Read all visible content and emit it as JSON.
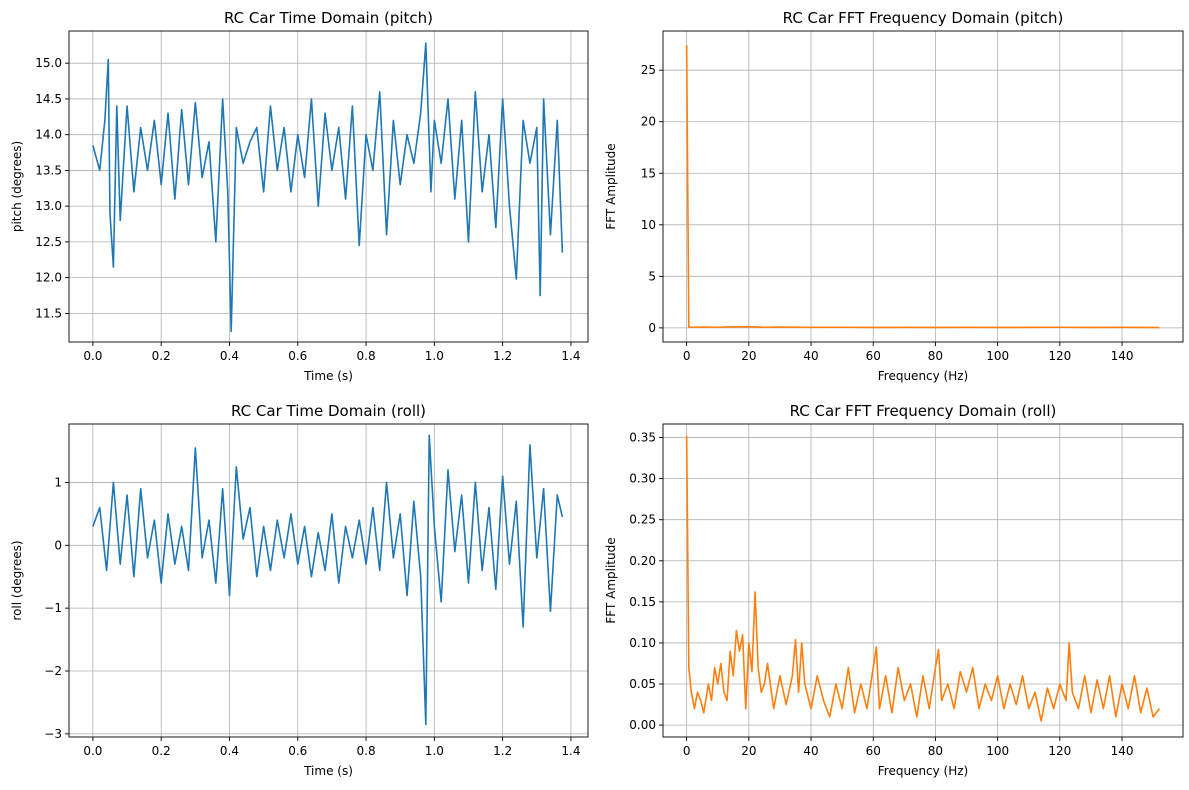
{
  "chart_data": [
    {
      "type": "line",
      "title": "RC Car Time Domain (pitch)",
      "xlabel": "Time (s)",
      "ylabel": "pitch (degrees)",
      "xlim": [
        -0.07,
        1.45
      ],
      "ylim": [
        11.1,
        15.45
      ],
      "xticks": [
        0.0,
        0.2,
        0.4,
        0.6,
        0.8,
        1.0,
        1.2,
        1.4
      ],
      "xtick_labels": [
        "0.0",
        "0.2",
        "0.4",
        "0.6",
        "0.8",
        "1.0",
        "1.2",
        "1.4"
      ],
      "yticks": [
        11.5,
        12.0,
        12.5,
        13.0,
        13.5,
        14.0,
        14.5,
        15.0
      ],
      "ytick_labels": [
        "11.5",
        "12.0",
        "12.5",
        "13.0",
        "13.5",
        "14.0",
        "14.5",
        "15.0"
      ],
      "grid": true,
      "color": "#1f77b4",
      "series": [
        {
          "name": "pitch",
          "x": [
            0.0,
            0.02,
            0.035,
            0.045,
            0.05,
            0.06,
            0.07,
            0.08,
            0.1,
            0.12,
            0.14,
            0.16,
            0.18,
            0.2,
            0.22,
            0.24,
            0.26,
            0.28,
            0.3,
            0.32,
            0.34,
            0.36,
            0.38,
            0.395,
            0.405,
            0.42,
            0.44,
            0.46,
            0.48,
            0.5,
            0.52,
            0.54,
            0.56,
            0.58,
            0.6,
            0.62,
            0.64,
            0.66,
            0.68,
            0.7,
            0.72,
            0.74,
            0.76,
            0.78,
            0.8,
            0.82,
            0.84,
            0.86,
            0.88,
            0.9,
            0.92,
            0.94,
            0.96,
            0.975,
            0.99,
            1.0,
            1.02,
            1.04,
            1.06,
            1.08,
            1.1,
            1.12,
            1.14,
            1.16,
            1.18,
            1.2,
            1.22,
            1.24,
            1.26,
            1.28,
            1.3,
            1.31,
            1.32,
            1.34,
            1.36,
            1.375
          ],
          "values": [
            13.85,
            13.5,
            14.2,
            15.05,
            12.9,
            12.15,
            14.4,
            12.8,
            14.4,
            13.2,
            14.1,
            13.5,
            14.2,
            13.3,
            14.3,
            13.1,
            14.35,
            13.3,
            14.45,
            13.4,
            13.9,
            12.5,
            14.5,
            13.2,
            11.25,
            14.1,
            13.6,
            13.9,
            14.1,
            13.2,
            14.4,
            13.5,
            14.1,
            13.2,
            14.0,
            13.4,
            14.5,
            13.0,
            14.3,
            13.5,
            14.1,
            13.1,
            14.4,
            12.45,
            14.0,
            13.5,
            14.6,
            12.6,
            14.2,
            13.3,
            14.0,
            13.6,
            14.3,
            15.28,
            13.2,
            14.2,
            13.6,
            14.5,
            13.1,
            14.2,
            12.5,
            14.6,
            13.2,
            14.0,
            12.7,
            14.5,
            13.0,
            11.98,
            14.2,
            13.6,
            14.1,
            11.75,
            14.5,
            12.6,
            14.2,
            12.35
          ]
        }
      ]
    },
    {
      "type": "line",
      "title": "RC Car FFT Frequency Domain (pitch)",
      "xlabel": "Frequency (Hz)",
      "ylabel": "FFT Amplitude",
      "xlim": [
        -7.6,
        159.6
      ],
      "ylim": [
        -1.37,
        28.8
      ],
      "xticks": [
        0,
        20,
        40,
        60,
        80,
        100,
        120,
        140
      ],
      "xtick_labels": [
        "0",
        "20",
        "40",
        "60",
        "80",
        "100",
        "120",
        "140"
      ],
      "yticks": [
        0,
        5,
        10,
        15,
        20,
        25
      ],
      "ytick_labels": [
        "0",
        "5",
        "10",
        "15",
        "20",
        "25"
      ],
      "grid": true,
      "color": "#ff7f0e",
      "series": [
        {
          "name": "FFT pitch",
          "x": [
            0,
            0.7,
            2,
            5,
            10,
            15,
            20,
            25,
            30,
            40,
            50,
            60,
            70,
            80,
            90,
            100,
            110,
            120,
            130,
            140,
            152
          ],
          "values": [
            27.4,
            0.1,
            0.05,
            0.08,
            0.05,
            0.1,
            0.12,
            0.06,
            0.08,
            0.05,
            0.06,
            0.04,
            0.05,
            0.04,
            0.05,
            0.04,
            0.05,
            0.06,
            0.04,
            0.05,
            0.03
          ]
        }
      ]
    },
    {
      "type": "line",
      "title": "RC Car Time Domain (roll)",
      "xlabel": "Time (s)",
      "ylabel": "roll (degrees)",
      "xlim": [
        -0.07,
        1.45
      ],
      "ylim": [
        -3.05,
        1.93
      ],
      "xticks": [
        0.0,
        0.2,
        0.4,
        0.6,
        0.8,
        1.0,
        1.2,
        1.4
      ],
      "xtick_labels": [
        "0.0",
        "0.2",
        "0.4",
        "0.6",
        "0.8",
        "1.0",
        "1.2",
        "1.4"
      ],
      "yticks": [
        -3,
        -2,
        -1,
        0,
        1
      ],
      "ytick_labels": [
        "−3",
        "−2",
        "−1",
        "0",
        "1"
      ],
      "grid": true,
      "color": "#1f77b4",
      "series": [
        {
          "name": "roll",
          "x": [
            0.0,
            0.02,
            0.04,
            0.06,
            0.08,
            0.1,
            0.12,
            0.14,
            0.16,
            0.18,
            0.2,
            0.22,
            0.24,
            0.26,
            0.28,
            0.3,
            0.32,
            0.34,
            0.36,
            0.38,
            0.4,
            0.42,
            0.44,
            0.46,
            0.48,
            0.5,
            0.52,
            0.54,
            0.56,
            0.58,
            0.6,
            0.62,
            0.64,
            0.66,
            0.68,
            0.7,
            0.72,
            0.74,
            0.76,
            0.78,
            0.8,
            0.82,
            0.84,
            0.86,
            0.88,
            0.9,
            0.92,
            0.94,
            0.96,
            0.975,
            0.985,
            1.0,
            1.02,
            1.04,
            1.06,
            1.08,
            1.1,
            1.12,
            1.14,
            1.16,
            1.18,
            1.2,
            1.22,
            1.24,
            1.26,
            1.28,
            1.3,
            1.32,
            1.34,
            1.36,
            1.375
          ],
          "values": [
            0.3,
            0.6,
            -0.4,
            1.0,
            -0.3,
            0.8,
            -0.5,
            0.9,
            -0.2,
            0.4,
            -0.6,
            0.5,
            -0.3,
            0.3,
            -0.4,
            1.55,
            -0.2,
            0.4,
            -0.6,
            0.9,
            -0.8,
            1.25,
            0.1,
            0.6,
            -0.5,
            0.3,
            -0.4,
            0.4,
            -0.2,
            0.5,
            -0.3,
            0.3,
            -0.5,
            0.2,
            -0.4,
            0.5,
            -0.6,
            0.3,
            -0.2,
            0.4,
            -0.3,
            0.6,
            -0.4,
            1.0,
            -0.2,
            0.5,
            -0.8,
            0.7,
            -0.5,
            -2.85,
            1.75,
            0.3,
            -0.9,
            1.2,
            -0.1,
            0.8,
            -0.6,
            1.0,
            -0.4,
            0.6,
            -0.7,
            1.1,
            -0.3,
            0.7,
            -1.3,
            1.6,
            -0.2,
            0.9,
            -1.05,
            0.8,
            0.45
          ]
        }
      ]
    },
    {
      "type": "line",
      "title": "RC Car FFT Frequency Domain (roll)",
      "xlabel": "Frequency (Hz)",
      "ylabel": "FFT Amplitude",
      "xlim": [
        -7.6,
        159.6
      ],
      "ylim": [
        -0.0145,
        0.3665
      ],
      "xticks": [
        0,
        20,
        40,
        60,
        80,
        100,
        120,
        140
      ],
      "xtick_labels": [
        "0",
        "20",
        "40",
        "60",
        "80",
        "100",
        "120",
        "140"
      ],
      "yticks": [
        0.0,
        0.05,
        0.1,
        0.15,
        0.2,
        0.25,
        0.3,
        0.35
      ],
      "ytick_labels": [
        "0.00",
        "0.05",
        "0.10",
        "0.15",
        "0.20",
        "0.25",
        "0.30",
        "0.35"
      ],
      "grid": true,
      "color": "#ff7f0e",
      "series": [
        {
          "name": "FFT roll",
          "x": [
            0,
            0.7,
            1.5,
            2.5,
            3.5,
            4.5,
            5.5,
            7,
            8,
            9,
            10,
            11,
            12,
            13,
            14,
            15,
            16,
            17,
            18,
            19,
            20,
            21,
            22,
            23,
            24,
            25,
            26,
            28,
            30,
            32,
            34,
            35,
            36,
            37,
            38,
            40,
            42,
            44,
            46,
            48,
            50,
            52,
            54,
            56,
            58,
            60,
            61,
            62,
            64,
            66,
            68,
            70,
            72,
            74,
            76,
            78,
            80,
            81,
            82,
            84,
            86,
            88,
            90,
            92,
            94,
            96,
            98,
            100,
            102,
            104,
            106,
            108,
            110,
            112,
            114,
            116,
            118,
            120,
            122,
            123,
            124,
            126,
            128,
            130,
            132,
            134,
            136,
            138,
            140,
            142,
            144,
            146,
            148,
            150,
            152
          ],
          "values": [
            0.352,
            0.07,
            0.04,
            0.02,
            0.04,
            0.03,
            0.015,
            0.05,
            0.03,
            0.07,
            0.05,
            0.075,
            0.04,
            0.03,
            0.09,
            0.06,
            0.115,
            0.09,
            0.11,
            0.02,
            0.1,
            0.065,
            0.162,
            0.07,
            0.04,
            0.05,
            0.075,
            0.02,
            0.06,
            0.025,
            0.06,
            0.104,
            0.04,
            0.1,
            0.05,
            0.02,
            0.06,
            0.03,
            0.01,
            0.05,
            0.02,
            0.07,
            0.015,
            0.05,
            0.02,
            0.07,
            0.095,
            0.02,
            0.06,
            0.015,
            0.07,
            0.03,
            0.05,
            0.01,
            0.06,
            0.02,
            0.07,
            0.092,
            0.03,
            0.05,
            0.02,
            0.065,
            0.04,
            0.07,
            0.02,
            0.05,
            0.03,
            0.06,
            0.02,
            0.05,
            0.025,
            0.06,
            0.02,
            0.04,
            0.005,
            0.045,
            0.02,
            0.05,
            0.03,
            0.1,
            0.04,
            0.02,
            0.06,
            0.015,
            0.055,
            0.02,
            0.06,
            0.01,
            0.05,
            0.02,
            0.06,
            0.015,
            0.045,
            0.01,
            0.02
          ]
        }
      ]
    }
  ]
}
